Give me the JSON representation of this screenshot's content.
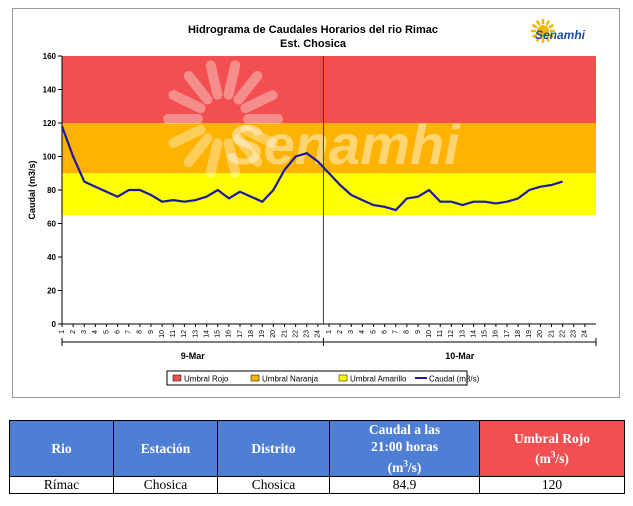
{
  "chart_data": {
    "type": "line",
    "title": "Hidrograma de Caudales Horarios del rio Rimac",
    "subtitle": "Est. Chosica",
    "logo_text": "Senamhi",
    "watermark_text": "Senamhi",
    "ylabel": "Caudal  (m3/s)",
    "ylim": [
      0,
      160
    ],
    "yticks": [
      "0",
      "20",
      "40",
      "60",
      "80",
      "100",
      "120",
      "140",
      "160"
    ],
    "x_tick_labels": [
      "1",
      "2",
      "3",
      "4",
      "5",
      "6",
      "7",
      "8",
      "9",
      "10",
      "11",
      "12",
      "13",
      "14",
      "15",
      "16",
      "17",
      "18",
      "19",
      "20",
      "21",
      "22",
      "23",
      "24"
    ],
    "days": [
      "9-Mar",
      "10-Mar"
    ],
    "bands": [
      {
        "name": "Umbral Rojo",
        "from": 120,
        "to": 160,
        "color": "#f25050"
      },
      {
        "name": "Umbral Naranja",
        "from": 90,
        "to": 120,
        "color": "#ffb300"
      },
      {
        "name": "Umbral Amarillo",
        "from": 65,
        "to": 90,
        "color": "#ffff00"
      }
    ],
    "series": [
      {
        "name": "Caudal (m3/s)",
        "color": "#1a1aa0",
        "values": [
          118,
          100,
          85,
          82,
          79,
          76,
          80,
          80,
          77,
          73,
          74,
          73,
          74,
          76,
          80,
          75,
          79,
          76,
          73,
          80,
          92,
          100,
          102,
          97,
          90,
          83,
          77,
          74,
          71,
          70,
          68,
          75,
          76,
          80,
          73,
          73,
          71,
          73,
          73,
          72,
          73,
          75,
          80,
          82,
          83,
          85
        ]
      }
    ],
    "legend": [
      {
        "label": "Umbral Rojo",
        "color": "#f25050",
        "kind": "box"
      },
      {
        "label": "Umbral Naranja",
        "color": "#ffb300",
        "kind": "box"
      },
      {
        "label": "Umbral Amarillo",
        "color": "#ffff00",
        "kind": "box"
      },
      {
        "label": "Caudal (m3/s)",
        "color": "#1a1aa0",
        "kind": "line"
      }
    ],
    "legend_position": "bottom",
    "grid": false
  },
  "table": {
    "headers": {
      "rio": "Rio",
      "estacion": "Estación",
      "distrito": "Distrito",
      "caudal_line1": "Caudal a las",
      "caudal_line2": "21:00 horas",
      "caudal_unit_pre": "(m",
      "caudal_unit_sup": "3",
      "caudal_unit_post": "/s)",
      "umbral_line1": "Umbral Rojo",
      "umbral_unit_pre": "(m",
      "umbral_unit_sup": "3",
      "umbral_unit_post": "/s)"
    },
    "row": {
      "rio": "Rímac",
      "estacion": "Chosica",
      "distrito": "Chosica",
      "caudal": "84.9",
      "umbral": "120"
    }
  }
}
